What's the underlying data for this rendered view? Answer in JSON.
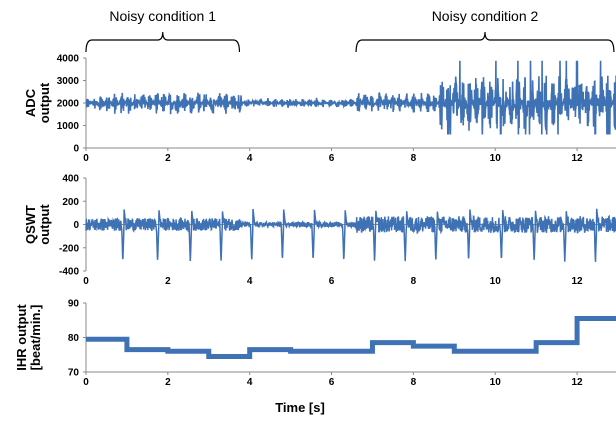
{
  "figure": {
    "annotations": [
      {
        "label": "Noisy condition 1",
        "x_start": 0,
        "x_end": 3.75
      },
      {
        "label": "Noisy condition 2",
        "x_start": 6.6,
        "x_end": 12.9
      }
    ],
    "xlabel": "Time [s]"
  },
  "chart_data": [
    {
      "type": "line",
      "name": "adc",
      "ylabel_lines": [
        "ADC",
        "output"
      ],
      "xlim": [
        0,
        13
      ],
      "ylim": [
        0,
        4000
      ],
      "xticks": [
        0,
        2,
        4,
        6,
        8,
        10,
        12
      ],
      "yticks": [
        0,
        1000,
        2000,
        3000,
        4000
      ],
      "series": [
        {
          "color": "#3f72b5"
        }
      ],
      "signal": {
        "baseline": 2000,
        "segments": [
          {
            "x_start": 0.0,
            "x_end": 0.3,
            "amplitude": 300
          },
          {
            "x_start": 0.3,
            "x_end": 3.8,
            "amplitude": 500
          },
          {
            "x_start": 3.8,
            "x_end": 6.6,
            "amplitude": 200
          },
          {
            "x_start": 6.6,
            "x_end": 8.6,
            "amplitude": 450
          },
          {
            "x_start": 8.6,
            "x_end": 13.0,
            "amplitude": 1250
          }
        ],
        "peak_max": 4000,
        "trough_min": 600
      }
    },
    {
      "type": "line",
      "name": "qswt",
      "ylabel_lines": [
        "QSWT",
        "output"
      ],
      "xlim": [
        0,
        13
      ],
      "ylim": [
        -400,
        400
      ],
      "xticks": [
        0,
        2,
        4,
        6,
        8,
        10,
        12
      ],
      "yticks": [
        -400,
        -200,
        0,
        200,
        400
      ],
      "series": [
        {
          "color": "#3f72b5"
        }
      ],
      "beat_times": [
        0.9,
        1.75,
        2.55,
        3.3,
        4.05,
        4.8,
        5.55,
        6.3,
        7.05,
        7.8,
        8.55,
        9.35,
        10.15,
        10.95,
        11.7,
        12.45
      ],
      "beat_trough": -320,
      "beat_peak": 300,
      "noise_segments": [
        {
          "x_start": 0.0,
          "x_end": 3.8,
          "amplitude": 90
        },
        {
          "x_start": 3.8,
          "x_end": 6.6,
          "amplitude": 35
        },
        {
          "x_start": 6.6,
          "x_end": 13.0,
          "amplitude": 120
        }
      ]
    },
    {
      "type": "line",
      "name": "ihr",
      "ylabel_lines": [
        "IHR output",
        "[beat/min.]"
      ],
      "xlim": [
        0,
        13
      ],
      "ylim": [
        70,
        90
      ],
      "xticks": [
        0,
        2,
        4,
        6,
        8,
        10,
        12
      ],
      "yticks": [
        70,
        80,
        90
      ],
      "series": [
        {
          "color": "#3f72b5"
        }
      ],
      "steps": [
        {
          "x": 0,
          "y": 79.5
        },
        {
          "x": 1.0,
          "y": 76.5
        },
        {
          "x": 2.0,
          "y": 76.0
        },
        {
          "x": 3.0,
          "y": 74.5
        },
        {
          "x": 4.0,
          "y": 76.5
        },
        {
          "x": 5.0,
          "y": 76.0
        },
        {
          "x": 7.0,
          "y": 78.5
        },
        {
          "x": 8.0,
          "y": 77.5
        },
        {
          "x": 9.0,
          "y": 76.0
        },
        {
          "x": 11.0,
          "y": 78.5
        },
        {
          "x": 12.0,
          "y": 85.5
        },
        {
          "x": 13.0,
          "y": 85.5
        }
      ]
    }
  ]
}
